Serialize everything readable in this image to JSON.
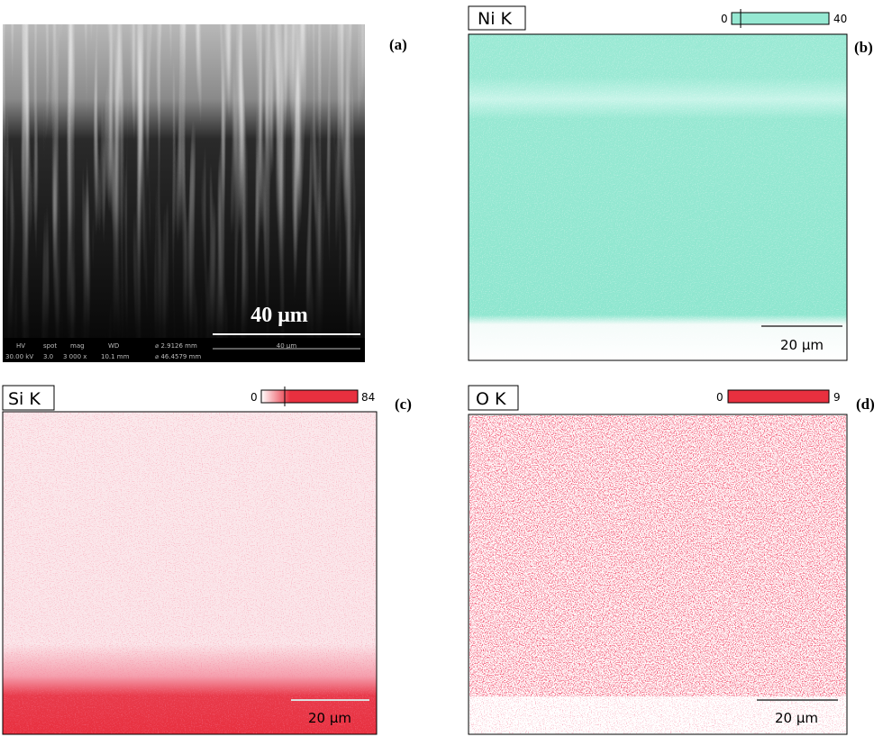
{
  "panels": [
    {
      "label": "(a)",
      "scale_bar": "40 μm",
      "databar": {
        "headers": [
          "HV",
          "spot",
          "mag",
          "WD"
        ],
        "values": [
          "30.00 kV",
          "3.0",
          "3 000 x",
          "10.1 mm"
        ],
        "field": [
          "⌀ 2.9126 mm",
          "⌀ 46.4579 mm"
        ],
        "bar": "40 μm"
      }
    },
    {
      "label": "(b)",
      "element": "Ni K",
      "scale_min": 0,
      "scale_max": 40,
      "scale_bar": "20 μm"
    },
    {
      "label": "(c)",
      "element": "Si K",
      "scale_min": 0,
      "scale_max": 84,
      "scale_bar": "20 μm"
    },
    {
      "label": "(d)",
      "element": "O K",
      "scale_min": 0,
      "scale_max": 9,
      "scale_bar": "20 μm"
    }
  ]
}
